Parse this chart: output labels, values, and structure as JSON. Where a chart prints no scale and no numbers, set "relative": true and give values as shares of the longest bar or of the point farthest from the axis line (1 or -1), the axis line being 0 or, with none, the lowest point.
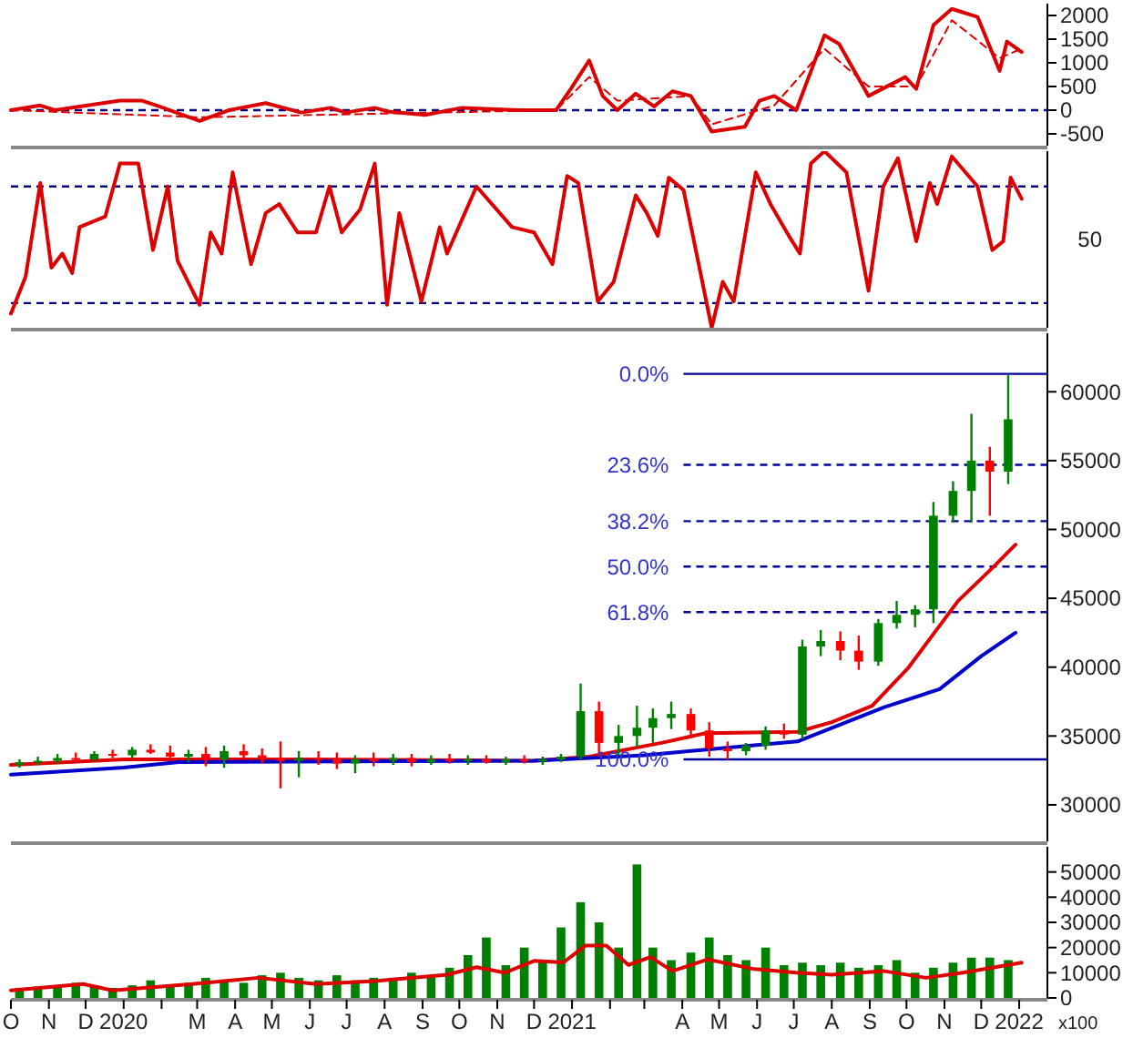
{
  "chart_data": [
    {
      "type": "line",
      "xlim": [
        "2019-10-01",
        "2022-01-24"
      ],
      "ylim": [
        -750,
        2250
      ],
      "yticks": [
        -500,
        0,
        500,
        1000,
        1500,
        2000
      ],
      "tick_labels": "y",
      "ref_lines": [
        {
          "axis": "y",
          "value": 0,
          "color": "#000080",
          "line_style": "dashed"
        }
      ],
      "series": [
        {
          "color": "#dd0000",
          "x": [
            "2019-10-01",
            "2019-10-25",
            "2019-11-06",
            "2019-12-29",
            "2020-01-16",
            "2020-01-28",
            "2020-03-03",
            "2020-03-27",
            "2020-04-26",
            "2020-05-25",
            "2020-06-18",
            "2020-06-30",
            "2020-07-24",
            "2020-08-04",
            "2020-09-03",
            "2020-10-03",
            "2020-11-19",
            "2020-12-19",
            "2020-12-31",
            "2021-01-15",
            "2021-01-26",
            "2021-02-07",
            "2021-02-22",
            "2021-03-09",
            "2021-03-24",
            "2021-04-08",
            "2021-04-25",
            "2021-05-22",
            "2021-06-03",
            "2021-06-15",
            "2021-07-03",
            "2021-07-26",
            "2021-08-07",
            "2021-08-31",
            "2021-09-30",
            "2021-10-09",
            "2021-10-23",
            "2021-11-07",
            "2021-11-28",
            "2021-12-16",
            "2021-12-22",
            "2022-01-03"
          ],
          "values": [
            0,
            100,
            0,
            200,
            200,
            100,
            -230,
            0,
            150,
            -50,
            50,
            -50,
            50,
            -30,
            -100,
            50,
            0,
            0,
            450,
            1050,
            300,
            0,
            350,
            80,
            400,
            300,
            -450,
            -350,
            200,
            300,
            0,
            1580,
            1400,
            300,
            700,
            450,
            1800,
            2140,
            1970,
            830,
            1450,
            1230
          ]
        },
        {
          "color": "#dd0000",
          "line_style": "dashed",
          "x": [
            "2019-10-01",
            "2020-03-03",
            "2020-12-19",
            "2021-01-15",
            "2021-02-07",
            "2021-04-08",
            "2021-04-25",
            "2021-06-15",
            "2021-07-26",
            "2021-08-31",
            "2021-10-09",
            "2021-11-07",
            "2021-12-16",
            "2022-01-03"
          ],
          "values": [
            0,
            -150,
            0,
            700,
            200,
            300,
            -300,
            100,
            1300,
            500,
            500,
            1900,
            1100,
            1300
          ]
        }
      ]
    },
    {
      "type": "line",
      "xlim": [
        "2019-10-01",
        "2022-01-24"
      ],
      "relative": true,
      "tick_labels": false,
      "annotations": [
        "50"
      ],
      "ref_lines": [
        {
          "axis": "y",
          "value": 0.8,
          "color": "#000080",
          "line_style": "dashed"
        },
        {
          "axis": "y",
          "value": 0.14,
          "color": "#000080",
          "line_style": "dashed"
        }
      ],
      "series": [
        {
          "color": "#dd0000",
          "x": [
            "2019-10-01",
            "2019-10-13",
            "2019-10-25",
            "2019-11-03",
            "2019-11-12",
            "2019-11-20",
            "2019-11-26",
            "2019-12-17",
            "2019-12-29",
            "2020-01-13",
            "2020-01-25",
            "2020-02-06",
            "2020-02-14",
            "2020-03-03",
            "2020-03-12",
            "2020-03-21",
            "2020-03-30",
            "2020-04-14",
            "2020-04-26",
            "2020-05-07",
            "2020-05-22",
            "2020-06-06",
            "2020-06-17",
            "2020-06-27",
            "2020-07-12",
            "2020-07-24",
            "2020-08-03",
            "2020-08-13",
            "2020-08-31",
            "2020-09-15",
            "2020-09-21",
            "2020-10-15",
            "2020-11-13",
            "2020-12-01",
            "2020-12-16",
            "2020-12-28",
            "2021-01-06",
            "2021-01-22",
            "2021-02-04",
            "2021-02-22",
            "2021-03-03",
            "2021-03-12",
            "2021-03-21",
            "2021-04-02",
            "2021-04-25",
            "2021-05-04",
            "2021-05-13",
            "2021-05-31",
            "2021-06-12",
            "2021-06-27",
            "2021-07-06",
            "2021-07-15",
            "2021-07-26",
            "2021-08-13",
            "2021-08-31",
            "2021-09-12",
            "2021-09-24",
            "2021-10-09",
            "2021-10-20",
            "2021-10-26",
            "2021-11-07",
            "2021-11-28",
            "2021-12-10",
            "2021-12-19",
            "2021-12-25",
            "2022-01-03"
          ],
          "values": [
            0.08,
            0.29,
            0.82,
            0.34,
            0.42,
            0.31,
            0.57,
            0.63,
            0.93,
            0.93,
            0.44,
            0.8,
            0.38,
            0.13,
            0.54,
            0.42,
            0.88,
            0.36,
            0.65,
            0.7,
            0.54,
            0.54,
            0.8,
            0.54,
            0.67,
            0.93,
            0.13,
            0.65,
            0.15,
            0.57,
            0.42,
            0.8,
            0.57,
            0.54,
            0.36,
            0.86,
            0.82,
            0.15,
            0.26,
            0.75,
            0.65,
            0.52,
            0.85,
            0.78,
            0,
            0.26,
            0.15,
            0.88,
            0.7,
            0.52,
            0.42,
            0.93,
            1,
            0.88,
            0.21,
            0.8,
            0.96,
            0.49,
            0.82,
            0.7,
            0.97,
            0.8,
            0.44,
            0.49,
            0.85,
            0.73
          ]
        }
      ]
    },
    {
      "type": "candlestick",
      "xlim": [
        "2019-10-01",
        "2022-01-24"
      ],
      "ylim": [
        27350,
        64250
      ],
      "yticks": [
        30000,
        35000,
        40000,
        45000,
        50000,
        55000,
        60000
      ],
      "tick_labels": "y",
      "annotations": [
        {
          "text": "0.0%",
          "x": "2021-04-02",
          "y": 61300
        },
        {
          "text": "23.6%",
          "x": "2021-04-02",
          "y": 54692
        },
        {
          "text": "38.2%",
          "x": "2021-04-02",
          "y": 50604
        },
        {
          "text": "50.0%",
          "x": "2021-04-02",
          "y": 47300
        },
        {
          "text": "61.8%",
          "x": "2021-04-02",
          "y": 43996
        },
        {
          "text": "100.0%",
          "x": "2021-04-02",
          "y": 33300
        }
      ],
      "x": [
        "2019-10-08",
        "2019-10-23",
        "2019-11-08",
        "2019-11-23",
        "2019-12-08",
        "2019-12-23",
        "2020-01-08",
        "2020-01-23",
        "2020-02-08",
        "2020-02-23",
        "2020-03-08",
        "2020-03-23",
        "2020-04-08",
        "2020-04-23",
        "2020-05-08",
        "2020-05-23",
        "2020-06-08",
        "2020-06-23",
        "2020-07-08",
        "2020-07-23",
        "2020-08-08",
        "2020-08-23",
        "2020-09-08",
        "2020-09-23",
        "2020-10-08",
        "2020-10-23",
        "2020-11-08",
        "2020-11-23",
        "2020-12-08",
        "2020-12-23",
        "2021-01-08",
        "2021-01-23",
        "2021-02-08",
        "2021-02-23",
        "2021-03-08",
        "2021-03-23",
        "2021-04-08",
        "2021-04-23",
        "2021-05-08",
        "2021-05-23",
        "2021-06-08",
        "2021-06-23",
        "2021-07-08",
        "2021-07-23",
        "2021-08-08",
        "2021-08-23",
        "2021-09-08",
        "2021-09-23",
        "2021-10-08",
        "2021-10-23",
        "2021-11-08",
        "2021-11-23",
        "2021-12-08",
        "2021-12-23"
      ],
      "ohlc": [
        [
          32900,
          33300,
          32700,
          33100
        ],
        [
          33100,
          33500,
          32900,
          33200
        ],
        [
          33200,
          33700,
          33000,
          33400
        ],
        [
          33400,
          33800,
          33100,
          33300
        ],
        [
          33300,
          33900,
          33200,
          33700
        ],
        [
          33700,
          34000,
          33400,
          33600
        ],
        [
          33600,
          34200,
          33400,
          34000
        ],
        [
          34000,
          34400,
          33700,
          33800
        ],
        [
          33800,
          34300,
          33300,
          33500
        ],
        [
          33500,
          34000,
          33100,
          33700
        ],
        [
          33700,
          34200,
          32800,
          33300
        ],
        [
          33300,
          34300,
          32700,
          33900
        ],
        [
          33900,
          34400,
          33300,
          33600
        ],
        [
          33600,
          34100,
          33000,
          33400
        ],
        [
          33400,
          34600,
          31200,
          33200
        ],
        [
          33200,
          33900,
          32000,
          33400
        ],
        [
          33400,
          33900,
          32900,
          33300
        ],
        [
          33300,
          33800,
          32600,
          33000
        ],
        [
          33000,
          33600,
          32300,
          33300
        ],
        [
          33300,
          33800,
          32800,
          33200
        ],
        [
          33200,
          33700,
          32900,
          33400
        ],
        [
          33400,
          33700,
          32800,
          33100
        ],
        [
          33100,
          33600,
          32900,
          33300
        ],
        [
          33300,
          33700,
          33000,
          33200
        ],
        [
          33200,
          33600,
          32900,
          33300
        ],
        [
          33300,
          33600,
          33000,
          33100
        ],
        [
          33100,
          33500,
          32900,
          33300
        ],
        [
          33300,
          33600,
          33000,
          33200
        ],
        [
          33200,
          33500,
          32900,
          33300
        ],
        [
          33300,
          33700,
          33100,
          33500
        ],
        [
          33500,
          38800,
          33300,
          36800
        ],
        [
          36800,
          37500,
          33500,
          34500
        ],
        [
          34500,
          35800,
          33600,
          35000
        ],
        [
          35000,
          37200,
          34200,
          35600
        ],
        [
          35600,
          37000,
          34500,
          36300
        ],
        [
          36300,
          37500,
          35500,
          36600
        ],
        [
          36600,
          37000,
          35000,
          35400
        ],
        [
          35400,
          36000,
          33500,
          34100
        ],
        [
          34100,
          34600,
          33300,
          33900
        ],
        [
          33900,
          34500,
          33600,
          34300
        ],
        [
          34300,
          35700,
          34000,
          35400
        ],
        [
          35400,
          35900,
          34800,
          35100
        ],
        [
          35100,
          42000,
          34800,
          41500
        ],
        [
          41500,
          42700,
          40800,
          41900
        ],
        [
          41900,
          42600,
          40500,
          41200
        ],
        [
          41200,
          42300,
          39800,
          40400
        ],
        [
          40400,
          43500,
          40100,
          43200
        ],
        [
          43200,
          44800,
          42800,
          43800
        ],
        [
          43800,
          44500,
          42900,
          44200
        ],
        [
          44200,
          52000,
          43200,
          51000
        ],
        [
          51000,
          53500,
          50500,
          52800
        ],
        [
          52800,
          58400,
          50500,
          55000
        ],
        [
          55000,
          56000,
          51000,
          54200
        ],
        [
          54200,
          61200,
          53300,
          58000
        ]
      ],
      "colors": [
        "#008000",
        "#008000",
        "#008000",
        "#ff0000",
        "#008000",
        "#ff0000",
        "#008000",
        "#ff0000",
        "#ff0000",
        "#008000",
        "#ff0000",
        "#008000",
        "#ff0000",
        "#ff0000",
        "#ff0000",
        "#008000",
        "#ff0000",
        "#ff0000",
        "#008000",
        "#ff0000",
        "#008000",
        "#ff0000",
        "#008000",
        "#ff0000",
        "#008000",
        "#ff0000",
        "#008000",
        "#ff0000",
        "#008000",
        "#008000",
        "#008000",
        "#ff0000",
        "#008000",
        "#008000",
        "#008000",
        "#008000",
        "#ff0000",
        "#ff0000",
        "#ff0000",
        "#008000",
        "#008000",
        "#ff0000",
        "#008000",
        "#008000",
        "#ff0000",
        "#ff0000",
        "#008000",
        "#008000",
        "#008000",
        "#008000",
        "#008000",
        "#008000",
        "#ff0000",
        "#008000"
      ],
      "ref_lines": [
        {
          "axis": "y",
          "value": 61300,
          "color": "#000099",
          "line_style": "solid"
        },
        {
          "axis": "y",
          "value": 54692,
          "color": "#000099",
          "line_style": "dashed"
        },
        {
          "axis": "y",
          "value": 50604,
          "color": "#000099",
          "line_style": "dashed"
        },
        {
          "axis": "y",
          "value": 47300,
          "color": "#000099",
          "line_style": "dashed"
        },
        {
          "axis": "y",
          "value": 43996,
          "color": "#000099",
          "line_style": "dashed"
        },
        {
          "axis": "y",
          "value": 33300,
          "color": "#000099",
          "line_style": "solid"
        }
      ],
      "series": [
        {
          "type": "line",
          "color": "#e00000",
          "x": [
            "2019-10-01",
            "2020-01-01",
            "2020-06-01",
            "2020-12-01",
            "2021-01-15",
            "2021-03-15",
            "2021-04-20",
            "2021-07-04",
            "2021-08-01",
            "2021-09-03",
            "2021-10-02",
            "2021-11-12",
            "2021-12-10",
            "2021-12-29"
          ],
          "values": [
            32900,
            33300,
            33300,
            33200,
            33500,
            34500,
            35200,
            35300,
            36000,
            37200,
            39900,
            44800,
            47200,
            48900
          ]
        },
        {
          "type": "line",
          "color": "#0000cc",
          "x": [
            "2019-10-01",
            "2020-01-01",
            "2020-02-15",
            "2020-12-01",
            "2021-03-01",
            "2021-05-01",
            "2021-07-04",
            "2021-09-13",
            "2021-10-28",
            "2021-12-01",
            "2021-12-29"
          ],
          "values": [
            32200,
            32700,
            33100,
            33200,
            33600,
            34100,
            34600,
            37100,
            38400,
            40800,
            42500
          ]
        }
      ]
    },
    {
      "type": "bar",
      "xlim": [
        "2019-10-01",
        "2022-01-24"
      ],
      "ylim": [
        0,
        60000
      ],
      "yticks": [
        0,
        10000,
        20000,
        30000,
        40000,
        50000
      ],
      "xticks": [
        {
          "value": "2019-10-01",
          "label": "O"
        },
        {
          "value": "2019-11-01",
          "label": "N"
        },
        {
          "value": "2019-12-01",
          "label": "D"
        },
        {
          "value": "2020-01-01",
          "label": "2020"
        },
        {
          "value": "2020-02-01",
          "label": null
        },
        {
          "value": "2020-03-01",
          "label": "M"
        },
        {
          "value": "2020-04-01",
          "label": "A"
        },
        {
          "value": "2020-05-01",
          "label": "M"
        },
        {
          "value": "2020-06-01",
          "label": "J"
        },
        {
          "value": "2020-07-01",
          "label": "J"
        },
        {
          "value": "2020-08-01",
          "label": "A"
        },
        {
          "value": "2020-09-01",
          "label": "S"
        },
        {
          "value": "2020-10-01",
          "label": "O"
        },
        {
          "value": "2020-11-01",
          "label": "N"
        },
        {
          "value": "2020-12-01",
          "label": "D"
        },
        {
          "value": "2021-01-01",
          "label": "2021"
        },
        {
          "value": "2021-02-01",
          "label": null
        },
        {
          "value": "2021-03-01",
          "label": null
        },
        {
          "value": "2021-04-01",
          "label": "A"
        },
        {
          "value": "2021-05-01",
          "label": "M"
        },
        {
          "value": "2021-06-01",
          "label": "J"
        },
        {
          "value": "2021-07-01",
          "label": "J"
        },
        {
          "value": "2021-08-01",
          "label": "A"
        },
        {
          "value": "2021-09-01",
          "label": "S"
        },
        {
          "value": "2021-10-01",
          "label": "O"
        },
        {
          "value": "2021-11-01",
          "label": "N"
        },
        {
          "value": "2021-12-01",
          "label": "D"
        },
        {
          "value": "2022-01-01",
          "label": "2022"
        }
      ],
      "annotations": [
        "x100"
      ],
      "series": [
        {
          "type": "bar",
          "color": "#008000",
          "x": [
            "2019-10-08",
            "2019-10-23",
            "2019-11-08",
            "2019-11-23",
            "2019-12-08",
            "2019-12-23",
            "2020-01-08",
            "2020-01-23",
            "2020-02-08",
            "2020-02-23",
            "2020-03-08",
            "2020-03-23",
            "2020-04-08",
            "2020-04-23",
            "2020-05-08",
            "2020-05-23",
            "2020-06-08",
            "2020-06-23",
            "2020-07-08",
            "2020-07-23",
            "2020-08-08",
            "2020-08-23",
            "2020-09-08",
            "2020-09-23",
            "2020-10-08",
            "2020-10-23",
            "2020-11-08",
            "2020-11-23",
            "2020-12-08",
            "2020-12-23",
            "2021-01-08",
            "2021-01-23",
            "2021-02-08",
            "2021-02-23",
            "2021-03-08",
            "2021-03-23",
            "2021-04-08",
            "2021-04-23",
            "2021-05-08",
            "2021-05-23",
            "2021-06-08",
            "2021-06-23",
            "2021-07-08",
            "2021-07-23",
            "2021-08-08",
            "2021-08-23",
            "2021-09-08",
            "2021-09-23",
            "2021-10-08",
            "2021-10-23",
            "2021-11-08",
            "2021-11-23",
            "2021-12-08",
            "2021-12-23"
          ],
          "values": [
            4000,
            4500,
            5000,
            6000,
            5000,
            4000,
            5000,
            7000,
            4500,
            6000,
            8000,
            7000,
            6000,
            9000,
            10000,
            8000,
            7000,
            9000,
            7000,
            8000,
            8000,
            10000,
            9000,
            12000,
            17000,
            24000,
            13000,
            20000,
            15000,
            28000,
            38000,
            30000,
            20000,
            53000,
            20000,
            15000,
            18000,
            24000,
            17000,
            15000,
            20000,
            13000,
            14000,
            13000,
            14000,
            12000,
            13000,
            15000,
            10000,
            12000,
            14000,
            16000,
            16000,
            15000
          ]
        },
        {
          "type": "line",
          "color": "#dd0000",
          "x": [
            "2019-10-01",
            "2019-11-29",
            "2019-12-23",
            "2020-02-26",
            "2020-04-20",
            "2020-06-06",
            "2020-07-24",
            "2020-09-21",
            "2020-10-15",
            "2020-11-07",
            "2020-12-01",
            "2020-12-25",
            "2021-01-12",
            "2021-01-29",
            "2021-02-16",
            "2021-03-06",
            "2021-03-24",
            "2021-04-22",
            "2021-05-28",
            "2021-07-03",
            "2021-08-01",
            "2021-09-12",
            "2021-10-17",
            "2021-11-16",
            "2022-01-03"
          ],
          "values": [
            3000,
            5500,
            3000,
            5500,
            8000,
            5500,
            6700,
            9200,
            12200,
            10000,
            14700,
            14100,
            20800,
            20800,
            13100,
            16200,
            10700,
            15300,
            11600,
            10000,
            9200,
            10700,
            8000,
            10000,
            14000
          ]
        }
      ]
    }
  ]
}
